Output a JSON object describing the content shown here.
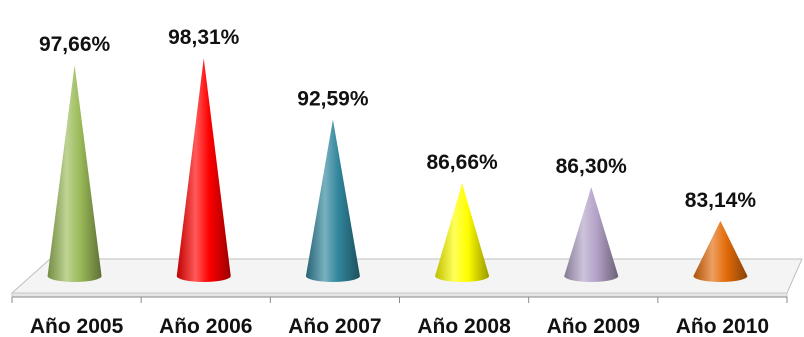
{
  "chart_data": {
    "type": "bar",
    "shape": "cone",
    "categories": [
      "Año 2005",
      "Año 2006",
      "Año 2007",
      "Año 2008",
      "Año 2009",
      "Año 2010"
    ],
    "values": [
      97.66,
      98.31,
      92.59,
      86.66,
      86.3,
      83.14
    ],
    "data_labels": [
      "97,66%",
      "98,31%",
      "92,59%",
      "86,66%",
      "86,30%",
      "83,14%"
    ],
    "colors": [
      "#9bbb59",
      "#ff0000",
      "#31859c",
      "#ffff00",
      "#b3a2c7",
      "#e46c0a"
    ],
    "title": "",
    "xlabel": "",
    "ylabel": "",
    "ylim": [
      78,
      100
    ],
    "grid": false,
    "legend": "none"
  }
}
